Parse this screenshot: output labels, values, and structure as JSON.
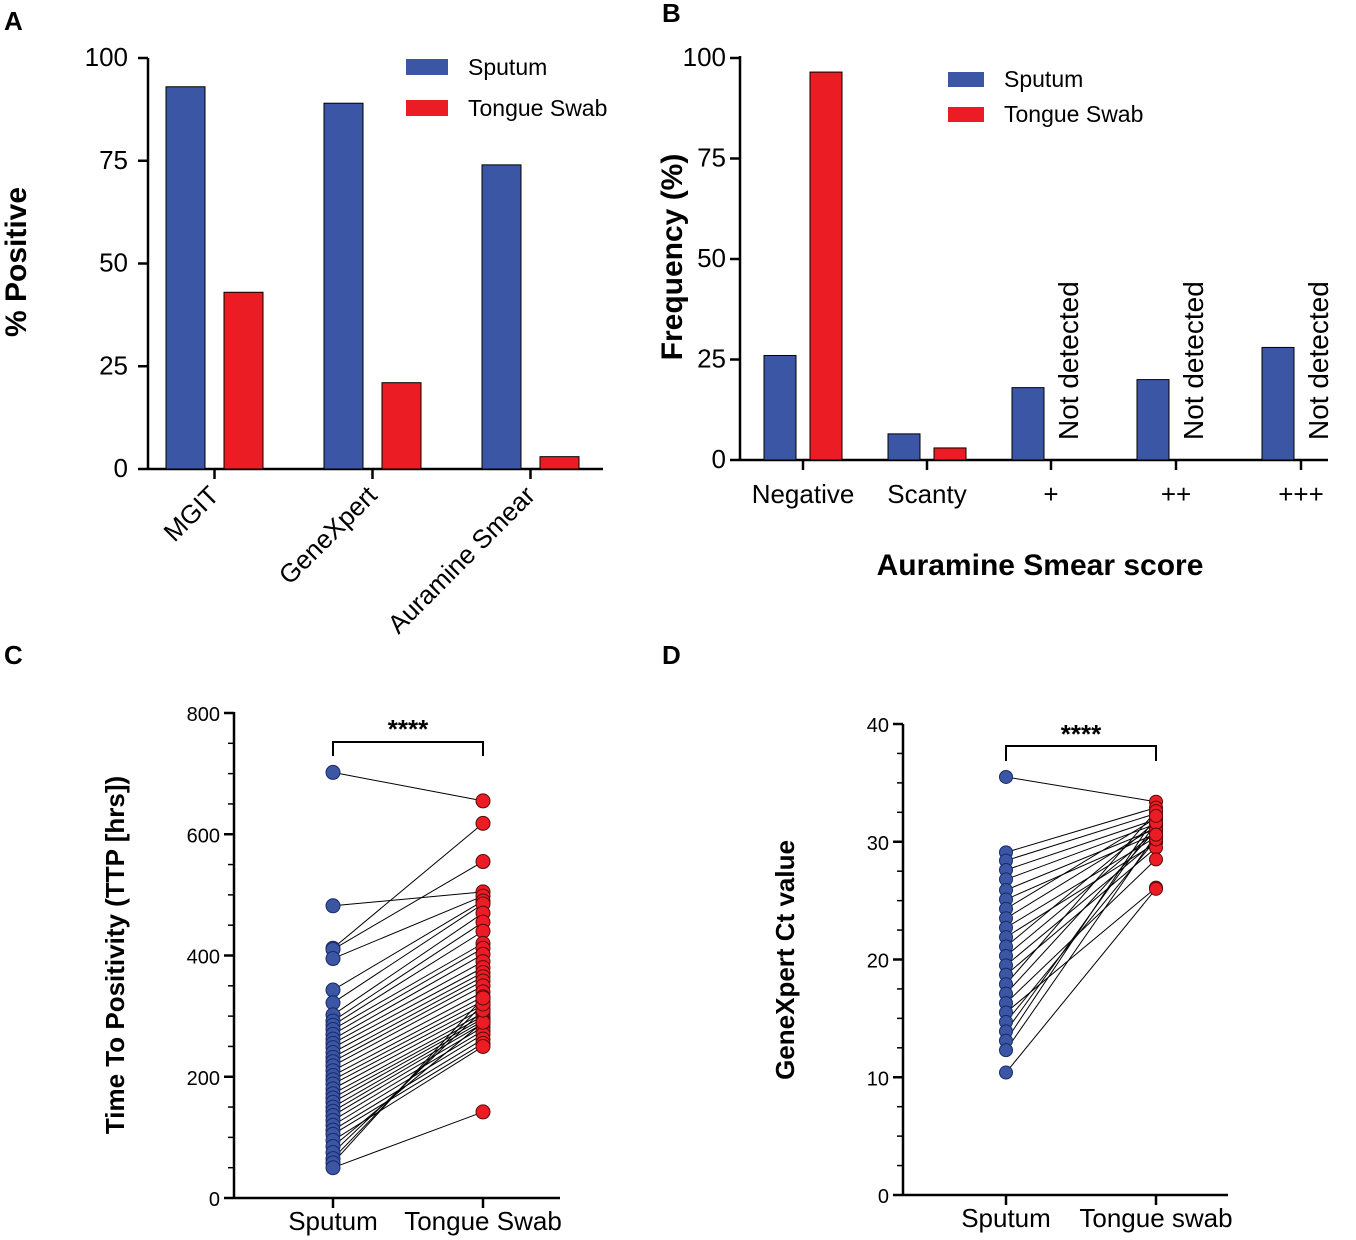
{
  "colors": {
    "sputum": "#3A56A5",
    "tongue": "#EC1C24"
  },
  "chart_data": [
    {
      "panel": "A",
      "type": "bar",
      "title": "",
      "xlabel": "",
      "ylabel": "% Positive",
      "ylim": [
        0,
        100
      ],
      "yticks": [
        "0",
        "25",
        "50",
        "75",
        "100"
      ],
      "categories": [
        "MGIT",
        "GeneXpert",
        "Auramine Smear"
      ],
      "series": [
        {
          "name": "Sputum",
          "values": [
            93,
            89,
            74
          ]
        },
        {
          "name": "Tongue Swab",
          "values": [
            43,
            21,
            3
          ]
        }
      ],
      "legend": "top-right"
    },
    {
      "panel": "B",
      "type": "bar",
      "title": "",
      "xlabel": "Auramine Smear score",
      "ylabel": "Frequency (%)",
      "ylim": [
        0,
        100
      ],
      "yticks": [
        "0",
        "25",
        "50",
        "75",
        "100"
      ],
      "categories": [
        "Negative",
        "Scanty",
        "+",
        "++",
        "+++"
      ],
      "series": [
        {
          "name": "Sputum",
          "values": [
            26,
            6.5,
            18,
            20,
            28
          ]
        },
        {
          "name": "Tongue Swab",
          "values": [
            96.5,
            3,
            null,
            null,
            null
          ]
        }
      ],
      "annotation": "Not detected",
      "legend": "top-right"
    },
    {
      "panel": "C",
      "type": "scatter",
      "title": "",
      "xlabel": "",
      "ylabel": "Time To Positivity (TTP [hrs])",
      "ylim": [
        0,
        800
      ],
      "yticks": [
        "0",
        "200",
        "400",
        "600",
        "800"
      ],
      "categories": [
        "Sputum",
        "Tongue Swab"
      ],
      "significance": "****",
      "pairs": [
        [
          702,
          655
        ],
        [
          482,
          505
        ],
        [
          412,
          618
        ],
        [
          410,
          555
        ],
        [
          395,
          498
        ],
        [
          343,
          490
        ],
        [
          322,
          485
        ],
        [
          302,
          470
        ],
        [
          292,
          455
        ],
        [
          285,
          440
        ],
        [
          278,
          420
        ],
        [
          270,
          412
        ],
        [
          262,
          402
        ],
        [
          255,
          390
        ],
        [
          248,
          380
        ],
        [
          240,
          372
        ],
        [
          232,
          365
        ],
        [
          225,
          358
        ],
        [
          218,
          350
        ],
        [
          210,
          340
        ],
        [
          202,
          332
        ],
        [
          195,
          325
        ],
        [
          188,
          318
        ],
        [
          180,
          312
        ],
        [
          172,
          305
        ],
        [
          165,
          300
        ],
        [
          158,
          296
        ],
        [
          150,
          292
        ],
        [
          143,
          288
        ],
        [
          136,
          282
        ],
        [
          128,
          276
        ],
        [
          120,
          270
        ],
        [
          112,
          262
        ],
        [
          105,
          255
        ],
        [
          95,
          250
        ],
        [
          85,
          290
        ],
        [
          75,
          310
        ],
        [
          65,
          320
        ],
        [
          58,
          330
        ],
        [
          50,
          142
        ]
      ]
    },
    {
      "panel": "D",
      "type": "scatter",
      "title": "",
      "xlabel": "",
      "ylabel": "GeneXpert Ct value",
      "ylim": [
        0,
        40
      ],
      "yticks": [
        "0",
        "10",
        "20",
        "30",
        "40"
      ],
      "categories": [
        "Sputum",
        "Tongue swab"
      ],
      "significance": "****",
      "pairs": [
        [
          35.5,
          33.4
        ],
        [
          29.1,
          32.9
        ],
        [
          28.4,
          32.4
        ],
        [
          27.6,
          31.9
        ],
        [
          26.8,
          31.5
        ],
        [
          25.9,
          31.1
        ],
        [
          25.1,
          30.7
        ],
        [
          24.3,
          32.0
        ],
        [
          23.5,
          31.3
        ],
        [
          22.7,
          30.4
        ],
        [
          21.9,
          29.9
        ],
        [
          21.1,
          31.7
        ],
        [
          20.3,
          30.9
        ],
        [
          19.5,
          30.1
        ],
        [
          18.7,
          29.5
        ],
        [
          17.9,
          32.6
        ],
        [
          17.1,
          31.0
        ],
        [
          16.3,
          28.5
        ],
        [
          15.5,
          26.1
        ],
        [
          14.7,
          30.2
        ],
        [
          13.9,
          31.6
        ],
        [
          13.1,
          32.2
        ],
        [
          12.3,
          30.6
        ],
        [
          10.4,
          26.0
        ]
      ]
    }
  ]
}
